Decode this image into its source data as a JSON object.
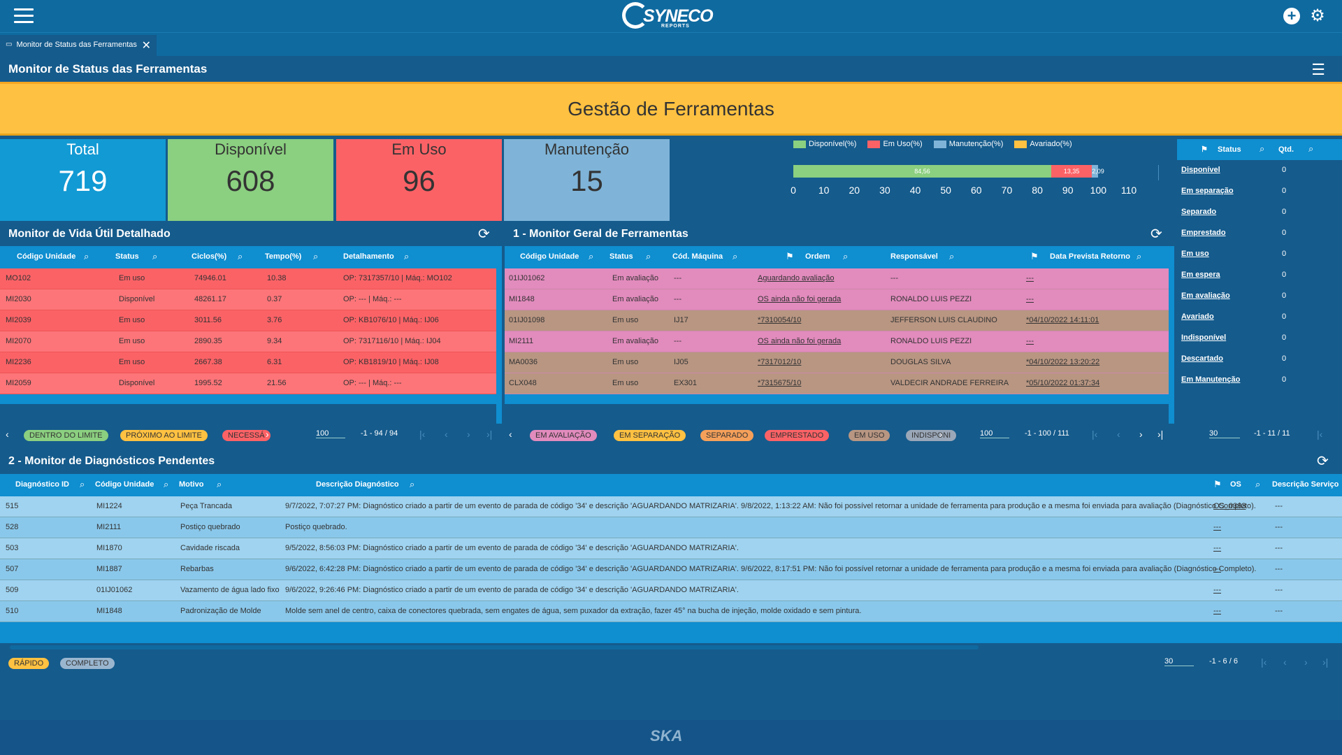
{
  "app": {
    "logo_word": "SYNECO",
    "logo_sub": "REPORTS"
  },
  "tab": {
    "label": "Monitor de Status das Ferramentas"
  },
  "page": {
    "title": "Monitor de Status das Ferramentas"
  },
  "banner": {
    "text": "Gestão de Ferramentas"
  },
  "cards": [
    {
      "label": "Total",
      "value": "719"
    },
    {
      "label": "Disponível",
      "value": "608"
    },
    {
      "label": "Em Uso",
      "value": "96"
    },
    {
      "label": "Manutenção",
      "value": "15"
    }
  ],
  "chart_data": {
    "type": "bar",
    "orientation": "horizontal-stacked",
    "series": [
      {
        "name": "Disponível(%)",
        "value": 84.56,
        "label": "84,56",
        "color": "#8bcf80"
      },
      {
        "name": "Em Uso(%)",
        "value": 13.35,
        "label": "13,35",
        "color": "#fb6266"
      },
      {
        "name": "Manutenção(%)",
        "value": 2.09,
        "label": "2,09",
        "color": "#7fb4d8"
      },
      {
        "name": "Avariado(%)",
        "value": 0,
        "label": "",
        "color": "#fec141"
      }
    ],
    "xlim": [
      0,
      110
    ],
    "ticks": [
      "0",
      "10",
      "20",
      "30",
      "40",
      "50",
      "60",
      "70",
      "80",
      "90",
      "100",
      "110"
    ]
  },
  "status_panel": {
    "col_status": "Status",
    "col_qtd": "Qtd.",
    "rows": [
      {
        "status": "Disponível",
        "qtd": "0"
      },
      {
        "status": "Em separação",
        "qtd": "0"
      },
      {
        "status": "Separado",
        "qtd": "0"
      },
      {
        "status": "Emprestado",
        "qtd": "0"
      },
      {
        "status": "Em uso",
        "qtd": "0"
      },
      {
        "status": "Em espera",
        "qtd": "0"
      },
      {
        "status": "Em avaliação",
        "qtd": "0"
      },
      {
        "status": "Avariado",
        "qtd": "0"
      },
      {
        "status": "Indisponível",
        "qtd": "0"
      },
      {
        "status": "Descartado",
        "qtd": "0"
      },
      {
        "status": "Em Manutenção",
        "qtd": "0"
      }
    ],
    "page_size": "30",
    "range": "-1 - 11 / 11"
  },
  "vida": {
    "title": "Monitor de Vida Útil Detalhado",
    "cols": [
      "Código Unidade",
      "Status",
      "Ciclos(%)",
      "Tempo(%)",
      "Detalhamento"
    ],
    "rows": [
      {
        "c": [
          "MO102",
          "Em uso",
          "74946.01",
          "10.38",
          "OP: 7317357/10 | Máq.: MO102"
        ]
      },
      {
        "c": [
          "MI2030",
          "Disponível",
          "48261.17",
          "0.37",
          "OP: --- | Máq.: ---"
        ]
      },
      {
        "c": [
          "MI2039",
          "Em uso",
          "3011.56",
          "3.76",
          "OP: KB1076/10 | Máq.: IJ06"
        ]
      },
      {
        "c": [
          "MI2070",
          "Em uso",
          "2890.35",
          "9.34",
          "OP: 7317116/10 | Máq.: IJ04"
        ]
      },
      {
        "c": [
          "MI2236",
          "Em uso",
          "2667.38",
          "6.31",
          "OP: KB1819/10 | Máq.: IJ08"
        ]
      },
      {
        "c": [
          "MI2059",
          "Disponível",
          "1995.52",
          "21.56",
          "OP: --- | Máq.: ---"
        ]
      }
    ],
    "chips": [
      {
        "label": "DENTRO DO LIMITE",
        "color": "#8bcf80"
      },
      {
        "label": "PRÓXIMO AO LIMITE",
        "color": "#fec141"
      },
      {
        "label": "NECESSÁ",
        "color": "#fb6266"
      }
    ],
    "page_size": "100",
    "range": "-1 - 94 / 94"
  },
  "geral": {
    "title": "1 - Monitor Geral de Ferramentas",
    "cols": [
      "Código Unidade",
      "Status",
      "Cód. Máquina",
      "Ordem",
      "Responsável",
      "Data Prevista Retorno"
    ],
    "rows": [
      {
        "bg": "#e28bbd",
        "c": [
          "01IJ01062",
          "Em avaliação",
          "---",
          "Aguardando avaliação",
          "---",
          "---"
        ]
      },
      {
        "bg": "#e28bbd",
        "c": [
          "MI1848",
          "Em avaliação",
          "---",
          "OS ainda não foi gerada",
          "RONALDO LUIS PEZZI",
          "---"
        ]
      },
      {
        "bg": "#b89682",
        "c": [
          "01IJ01098",
          "Em uso",
          "IJ17",
          "*7310054/10",
          "JEFFERSON LUIS CLAUDINO",
          "*04/10/2022 14:11:01"
        ]
      },
      {
        "bg": "#e28bbd",
        "c": [
          "MI2111",
          "Em avaliação",
          "---",
          "OS ainda não foi gerada",
          "RONALDO LUIS PEZZI",
          "---"
        ]
      },
      {
        "bg": "#b89682",
        "c": [
          "MA0036",
          "Em uso",
          "IJ05",
          "*7317012/10",
          "DOUGLAS SILVA",
          "*04/10/2022 13:20:22"
        ]
      },
      {
        "bg": "#b89682",
        "c": [
          "CLX048",
          "Em uso",
          "EX301",
          "*7315675/10",
          "VALDECIR ANDRADE FERREIRA",
          "*05/10/2022 01:37:34"
        ]
      }
    ],
    "chips": [
      {
        "label": "EM AVALIAÇÃO",
        "color": "#e28bbd"
      },
      {
        "label": "EM SEPARAÇÃO",
        "color": "#fec141"
      },
      {
        "label": "SEPARADO",
        "color": "#f5a05a"
      },
      {
        "label": "EMPRESTADO",
        "color": "#fb6266"
      },
      {
        "label": "EM USO",
        "color": "#b89682"
      },
      {
        "label": "INDISPONI",
        "color": "#9aa7b8"
      }
    ],
    "page_size": "100",
    "range": "-1 - 100 / 111"
  },
  "diag": {
    "title": "2 - Monitor de Diagnósticos Pendentes",
    "cols": [
      "Diagnóstico ID",
      "Código Unidade",
      "Motivo",
      "Descrição Diagnóstico",
      "OS",
      "Descrição Serviço"
    ],
    "rows": [
      {
        "c": [
          "515",
          "MI1224",
          "Peça Trancada",
          "9/7/2022, 7:07:27 PM: Diagnóstico criado a partir de um evento de parada de código '34' e descrição 'AGUARDANDO MATRIZARIA'. 9/8/2022, 1:13:22 AM: Não foi possível retornar a unidade de ferramenta para produção e a mesma foi enviada para avaliação (Diagnóstico Completo).",
          "OS_0383",
          "---"
        ]
      },
      {
        "c": [
          "528",
          "MI2111",
          "Postiço quebrado",
          "Postiço quebrado.",
          "---",
          "---"
        ]
      },
      {
        "c": [
          "503",
          "MI1870",
          "Cavidade riscada",
          "9/5/2022, 8:56:03 PM: Diagnóstico criado a partir de um evento de parada de código '34' e descrição 'AGUARDANDO MATRIZARIA'.",
          "---",
          "---"
        ]
      },
      {
        "c": [
          "507",
          "MI1887",
          "Rebarbas",
          "9/6/2022, 6:42:28 PM: Diagnóstico criado a partir de um evento de parada de código '34' e descrição 'AGUARDANDO MATRIZARIA'. 9/6/2022, 8:17:51 PM: Não foi possível retornar a unidade de ferramenta para produção e a mesma foi enviada para avaliação (Diagnóstico Completo).",
          "---",
          "---"
        ]
      },
      {
        "c": [
          "509",
          "01IJ01062",
          "Vazamento de água lado fixo",
          "9/6/2022, 9:26:46 PM: Diagnóstico criado a partir de um evento de parada de código '34' e descrição 'AGUARDANDO MATRIZARIA'.",
          "---",
          "---"
        ]
      },
      {
        "c": [
          "510",
          "MI1848",
          "Padronização de Molde",
          "Molde sem anel de centro, caixa de conectores quebrada, sem engates de água, sem puxador da extração, fazer 45° na bucha de injeção, molde oxidado e sem pintura.",
          "---",
          "---"
        ]
      }
    ],
    "chips": [
      {
        "label": "RÁPIDO",
        "color": "#fec141"
      },
      {
        "label": "COMPLETO",
        "color": "#9ab6cf"
      }
    ],
    "page_size": "30",
    "range": "-1 - 6 / 6"
  },
  "footer": {
    "brand": "SKA"
  }
}
